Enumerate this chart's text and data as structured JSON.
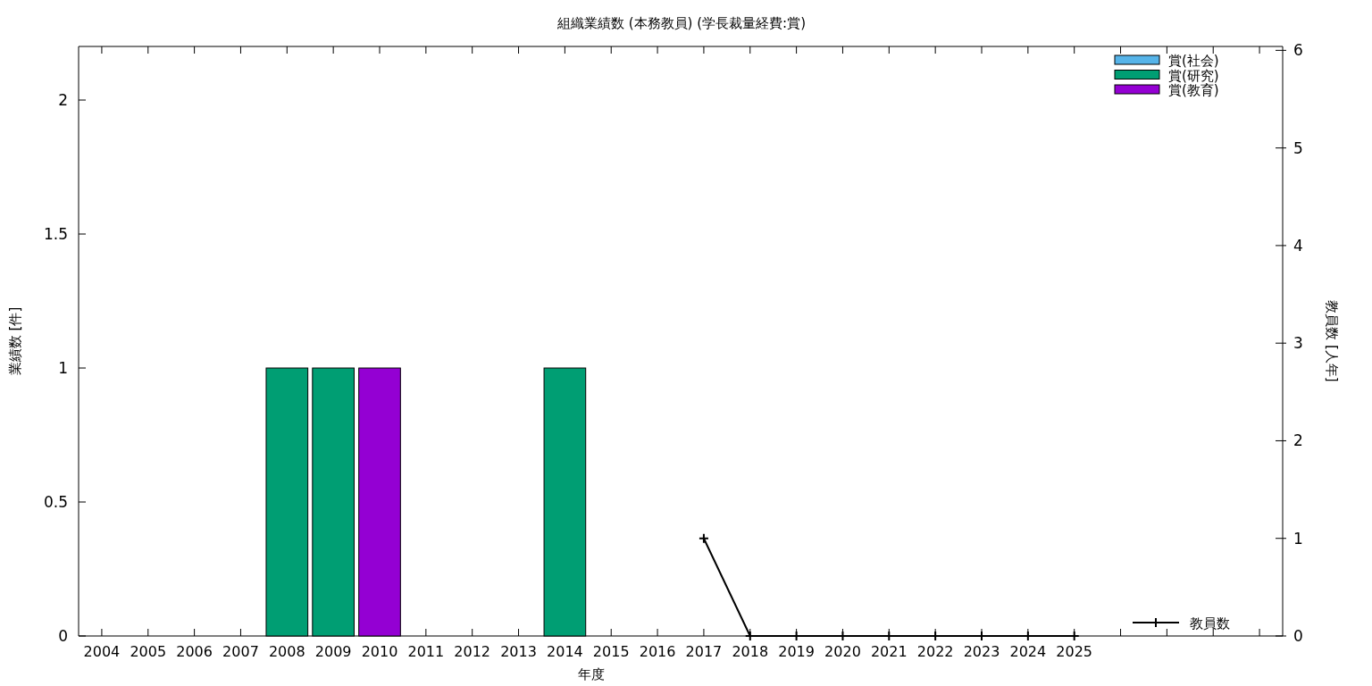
{
  "chart_data": {
    "type": "bar",
    "stacked": true,
    "title": "組織業績数 (本務教員) (学長裁量経費:賞)",
    "xlabel": "年度",
    "ylabel": "業績数 [件]",
    "y2label": "教員数 [人年]",
    "categories": [
      "2004",
      "2005",
      "2006",
      "2007",
      "2008",
      "2009",
      "2010",
      "2011",
      "2012",
      "2013",
      "2014",
      "2015",
      "2016",
      "2017",
      "2018",
      "2019",
      "2020",
      "2021",
      "2022",
      "2023",
      "2024",
      "2025",
      null,
      null,
      null,
      null
    ],
    "ylim": [
      0,
      2.2
    ],
    "yticks": [
      0,
      0.5,
      1,
      1.5,
      2
    ],
    "y2lim": [
      0,
      6.04
    ],
    "y2ticks": [
      0,
      1,
      2,
      3,
      4,
      5,
      6
    ],
    "legend": "right",
    "grid": false,
    "series": [
      {
        "name": "賞(社会)",
        "color": "#56b4e9",
        "values": [
          0,
          0,
          0,
          0,
          0,
          0,
          0,
          0,
          0,
          0,
          0,
          0,
          0,
          0,
          0,
          0,
          0,
          0,
          0,
          0,
          0,
          0,
          null,
          null,
          null,
          null
        ]
      },
      {
        "name": "賞(研究)",
        "color": "#009e73",
        "values": [
          0,
          0,
          0,
          0,
          1,
          1,
          0,
          0,
          0,
          0,
          1,
          0,
          0,
          0,
          0,
          0,
          0,
          0,
          0,
          0,
          0,
          0,
          null,
          null,
          null,
          null
        ]
      },
      {
        "name": "賞(教育)",
        "color": "#9400d3",
        "values": [
          0,
          0,
          0,
          0,
          0,
          0,
          1,
          0,
          0,
          0,
          0,
          0,
          0,
          0,
          0,
          0,
          0,
          0,
          0,
          0,
          0,
          0,
          null,
          null,
          null,
          null
        ]
      },
      {
        "name": "教員数",
        "type": "line",
        "axis": "y2",
        "color": "#000000",
        "marker": "cross",
        "values": [
          null,
          null,
          null,
          null,
          null,
          null,
          null,
          null,
          null,
          null,
          null,
          null,
          null,
          1,
          0,
          0,
          0,
          0,
          0,
          0,
          0,
          0,
          null,
          null,
          null,
          null
        ]
      }
    ]
  }
}
